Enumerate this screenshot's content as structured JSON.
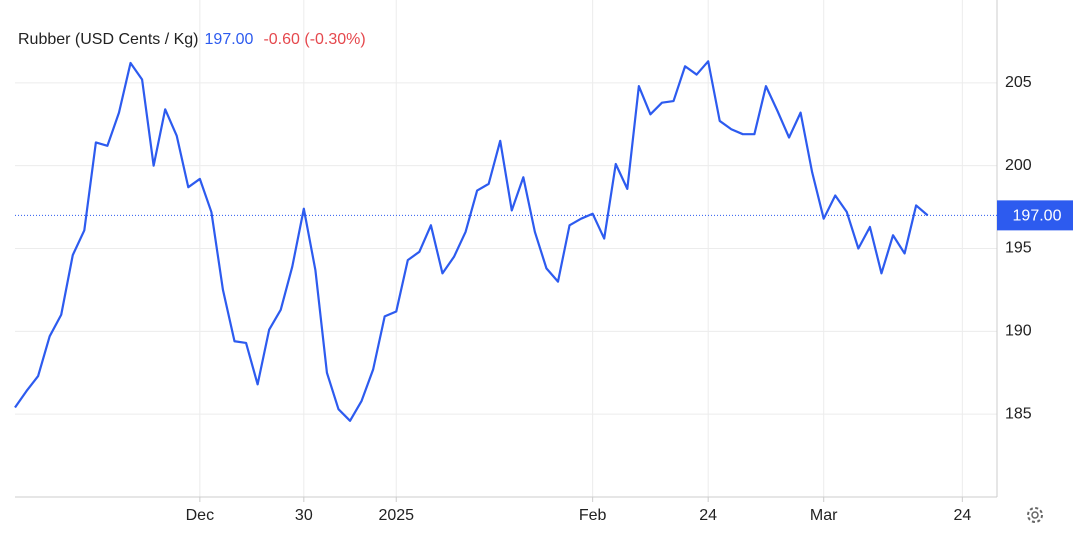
{
  "chart_data": {
    "type": "line",
    "title": "Rubber (USD Cents / Kg)",
    "price": "197.00",
    "change": "-0.60 (-0.30%)",
    "categories": [
      null,
      null,
      null,
      null,
      null,
      null,
      null,
      null,
      null,
      null,
      null,
      null,
      null,
      null,
      null,
      null,
      "Dec",
      null,
      null,
      null,
      null,
      null,
      null,
      null,
      null,
      "30",
      null,
      null,
      null,
      null,
      null,
      null,
      null,
      "2025",
      null,
      null,
      null,
      null,
      null,
      null,
      null,
      null,
      null,
      null,
      null,
      null,
      null,
      null,
      null,
      null,
      "Feb",
      null,
      null,
      null,
      null,
      null,
      null,
      null,
      null,
      null,
      "24",
      null,
      null,
      null,
      null,
      null,
      null,
      null,
      null,
      null,
      "Mar",
      null,
      null,
      null,
      null,
      null,
      null,
      null,
      null,
      null,
      null,
      null,
      "24",
      null,
      null
    ],
    "series": [
      {
        "name": "Rubber",
        "color": "#2d5bef",
        "values": [
          185.4,
          186.4,
          187.3,
          189.7,
          191.0,
          194.6,
          196.1,
          201.4,
          201.2,
          203.2,
          206.2,
          205.2,
          200.0,
          203.4,
          201.8,
          198.7,
          199.2,
          197.2,
          192.5,
          189.4,
          189.3,
          186.8,
          190.1,
          191.3,
          193.9,
          197.4,
          193.7,
          187.5,
          185.3,
          184.6,
          185.8,
          187.7,
          190.9,
          191.2,
          194.3,
          194.8,
          196.4,
          193.5,
          194.5,
          196.0,
          198.5,
          198.9,
          201.5,
          197.3,
          199.3,
          196.0,
          193.8,
          193.0,
          196.4,
          196.8,
          197.1,
          195.6,
          200.1,
          198.6,
          204.8,
          203.1,
          203.8,
          203.9,
          206.0,
          205.5,
          206.3,
          202.7,
          202.2,
          201.9,
          201.9,
          204.8,
          203.3,
          201.7,
          203.2,
          199.6,
          196.8,
          198.2,
          197.2,
          195.0,
          196.3,
          193.5,
          195.8,
          194.7,
          197.6,
          197.0,
          null,
          null,
          null,
          null,
          null
        ]
      }
    ],
    "ylim": [
      180,
      210
    ],
    "yticks": [
      185,
      190,
      195,
      200,
      205
    ],
    "grid": true
  }
}
